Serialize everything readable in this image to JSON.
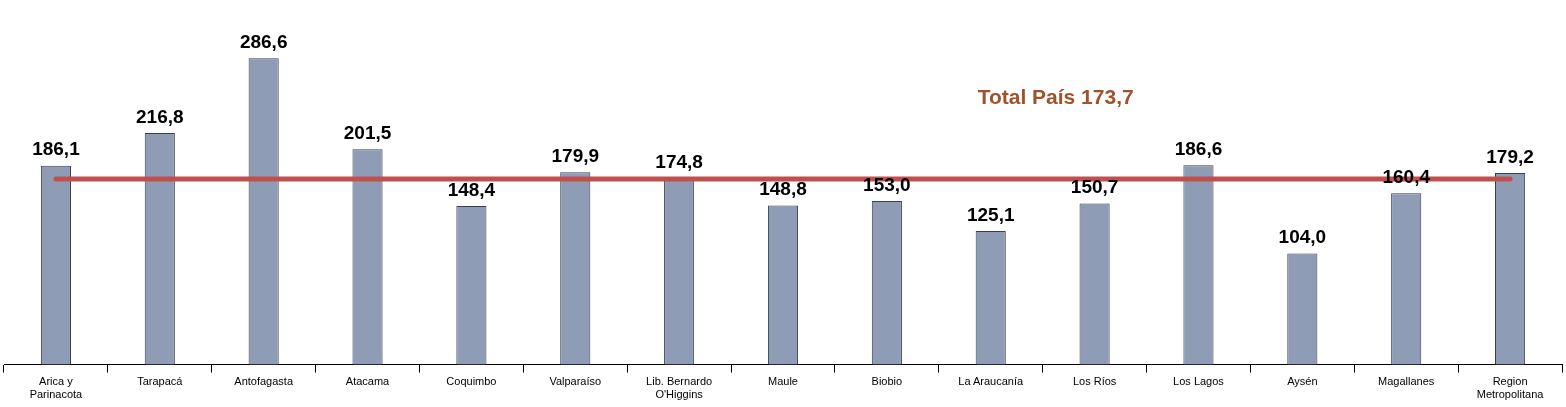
{
  "chart_data": {
    "type": "bar",
    "categories": [
      "Arica y Parinacota",
      "Tarapacá",
      "Antofagasta",
      "Atacama",
      "Coquimbo",
      "Valparaíso",
      "Lib. Bernardo O'Higgins",
      "Maule",
      "Biobio",
      "La Araucanía",
      "Los Ríos",
      "Los Lagos",
      "Aysén",
      "Magallanes",
      "Region Metropolitana"
    ],
    "values": [
      186.1,
      216.8,
      286.6,
      201.5,
      148.4,
      179.9,
      174.8,
      148.8,
      153.0,
      125.1,
      150.7,
      186.6,
      104.0,
      160.4,
      179.2
    ],
    "value_labels": [
      "186,1",
      "216,8",
      "286,6",
      "201,5",
      "148,4",
      "179,9",
      "174,8",
      "148,8",
      "153,0",
      "125,1",
      "150,7",
      "186,6",
      "104,0",
      "160,4",
      "179,2"
    ],
    "color": "#8e9cb6",
    "tick_labels": "x",
    "ref_lines": [
      {
        "axis": "y",
        "value": 173.7,
        "label": "Total País 173,7",
        "color": "#c0504d"
      }
    ],
    "grid": false,
    "legend": false
  }
}
